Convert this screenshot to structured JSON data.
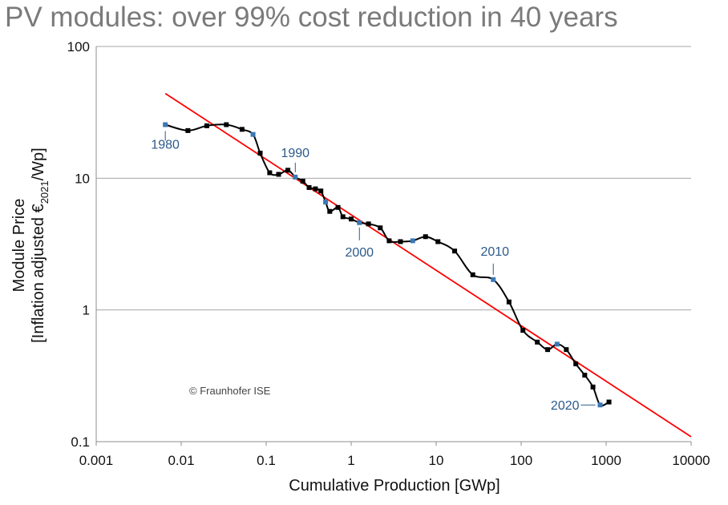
{
  "title": "PV modules: over 99% cost reduction in 40 years",
  "chart_data": {
    "type": "line",
    "xscale": "log",
    "yscale": "log",
    "xlim": [
      0.001,
      10000
    ],
    "ylim": [
      0.1,
      100
    ],
    "xticks": [
      "0.001",
      "0.01",
      "0.1",
      "1",
      "10",
      "100",
      "1000",
      "10000"
    ],
    "yticks": [
      "0.1",
      "1",
      "10",
      "100"
    ],
    "xlabel": "Cumulative Production [GWp]",
    "ylabel_line1": "Module Price",
    "ylabel_line2_prefix": "[Inflation adjusted €",
    "ylabel_line2_sub": "2021",
    "ylabel_line2_suffix": "/Wp]",
    "grid": "horizontal",
    "colors": {
      "series": "#000000",
      "trend": "#ff0000",
      "highlight": "#3a78b5",
      "labels": "#2a5a8c"
    },
    "series": [
      {
        "x": [
          0.0065,
          0.012,
          0.02,
          0.034,
          0.052,
          0.07,
          0.085,
          0.11,
          0.14,
          0.18,
          0.22,
          0.27,
          0.32,
          0.38,
          0.44,
          0.5,
          0.56,
          0.7,
          0.8,
          1.0,
          1.25,
          1.6,
          2.2,
          2.8,
          3.8,
          5.3,
          7.5,
          10.5,
          16.5,
          27,
          47,
          72,
          105,
          155,
          205,
          265,
          340,
          440,
          560,
          700,
          850,
          1080
        ],
        "y": [
          25.5,
          23,
          25,
          25.5,
          23.5,
          21.5,
          15.5,
          11,
          10.7,
          11.5,
          10.2,
          9.5,
          8.5,
          8.3,
          8,
          6.6,
          5.6,
          6,
          5.1,
          4.9,
          4.6,
          4.5,
          4.2,
          3.35,
          3.3,
          3.35,
          3.6,
          3.3,
          2.8,
          1.85,
          1.7,
          1.15,
          0.7,
          0.57,
          0.5,
          0.55,
          0.5,
          0.39,
          0.32,
          0.26,
          0.19,
          0.2
        ]
      }
    ],
    "highlighted_points": [
      {
        "year": "1980",
        "x": 0.0065,
        "y": 25.5
      },
      {
        "year": "1990",
        "x": 0.22,
        "y": 10.2
      },
      {
        "year": "2000",
        "x": 1.25,
        "y": 4.6
      },
      {
        "year": "2010",
        "x": 47,
        "y": 1.7
      },
      {
        "year": "2020",
        "x": 850,
        "y": 0.19
      }
    ],
    "extra_blue_points": [
      {
        "x": 0.07,
        "y": 21.5
      },
      {
        "x": 0.5,
        "y": 6.6
      },
      {
        "x": 5.3,
        "y": 3.35
      },
      {
        "x": 265,
        "y": 0.55
      }
    ],
    "trendline": {
      "x": [
        0.0065,
        10000
      ],
      "y": [
        44,
        0.109
      ]
    },
    "annotation": "© Fraunhofer ISE"
  }
}
